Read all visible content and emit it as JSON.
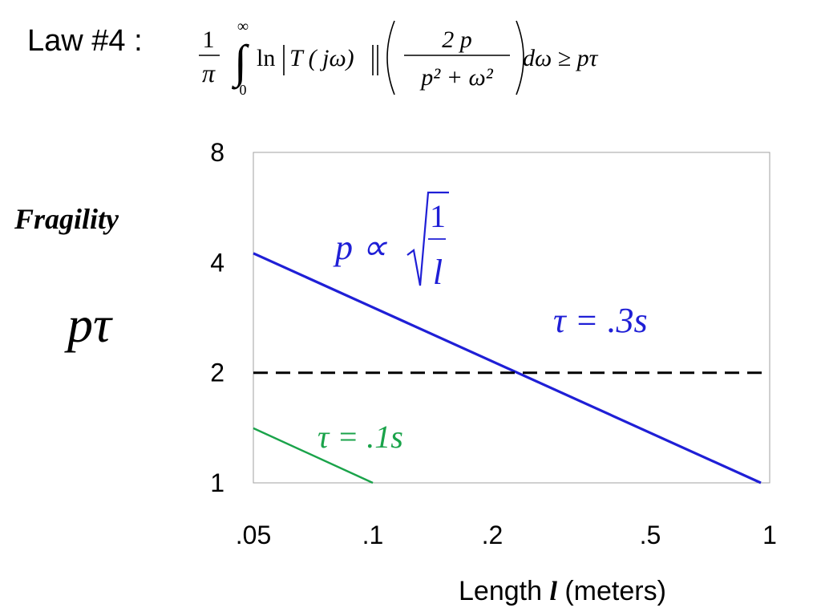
{
  "formula": {
    "law_label": "Law #4 :",
    "pi": "π",
    "one": "1",
    "upper_limit": "∞",
    "lower_limit": "0",
    "integral": "∫",
    "ln": "ln",
    "integrand": "T ( jω)",
    "numerator": "2 p",
    "denominator": "p² + ω²",
    "tail": "dω ≥ pτ"
  },
  "labels": {
    "y_word": "Fragility",
    "y_symbol": "pτ",
    "x_prefix": "Length",
    "x_var": "l",
    "x_suffix": " (meters)"
  },
  "chart_data": {
    "type": "line",
    "x_scale": "log",
    "y_scale": "log",
    "xlim": [
      0.05,
      1
    ],
    "ylim": [
      1,
      8
    ],
    "x_ticks": [
      {
        "value": 0.05,
        "label": ".05"
      },
      {
        "value": 0.1,
        "label": ".1"
      },
      {
        "value": 0.2,
        "label": ".2"
      },
      {
        "value": 0.5,
        "label": ".5"
      },
      {
        "value": 1,
        "label": "1"
      }
    ],
    "y_ticks": [
      {
        "value": 1,
        "label": "1"
      },
      {
        "value": 2,
        "label": "2"
      },
      {
        "value": 4,
        "label": "4"
      },
      {
        "value": 8,
        "label": "8"
      }
    ],
    "grid": false,
    "series": [
      {
        "name": "τ = .3s",
        "color": "#1f1fd6",
        "style": "solid",
        "x": [
          0.05,
          0.95
        ],
        "y": [
          4.24,
          1.0
        ]
      },
      {
        "name": "τ = .1s",
        "color": "#1aa34a",
        "style": "solid",
        "x": [
          0.05,
          0.1
        ],
        "y": [
          1.41,
          1.0
        ]
      },
      {
        "name": "",
        "color": "#000000",
        "style": "dashed",
        "x": [
          0.05,
          1
        ],
        "y": [
          2,
          2
        ]
      }
    ],
    "annotations": {
      "p_prefix": "p ∝",
      "one": "1",
      "l": "l",
      "tau3": "τ = .3s",
      "tau1": "τ = .1s"
    }
  }
}
